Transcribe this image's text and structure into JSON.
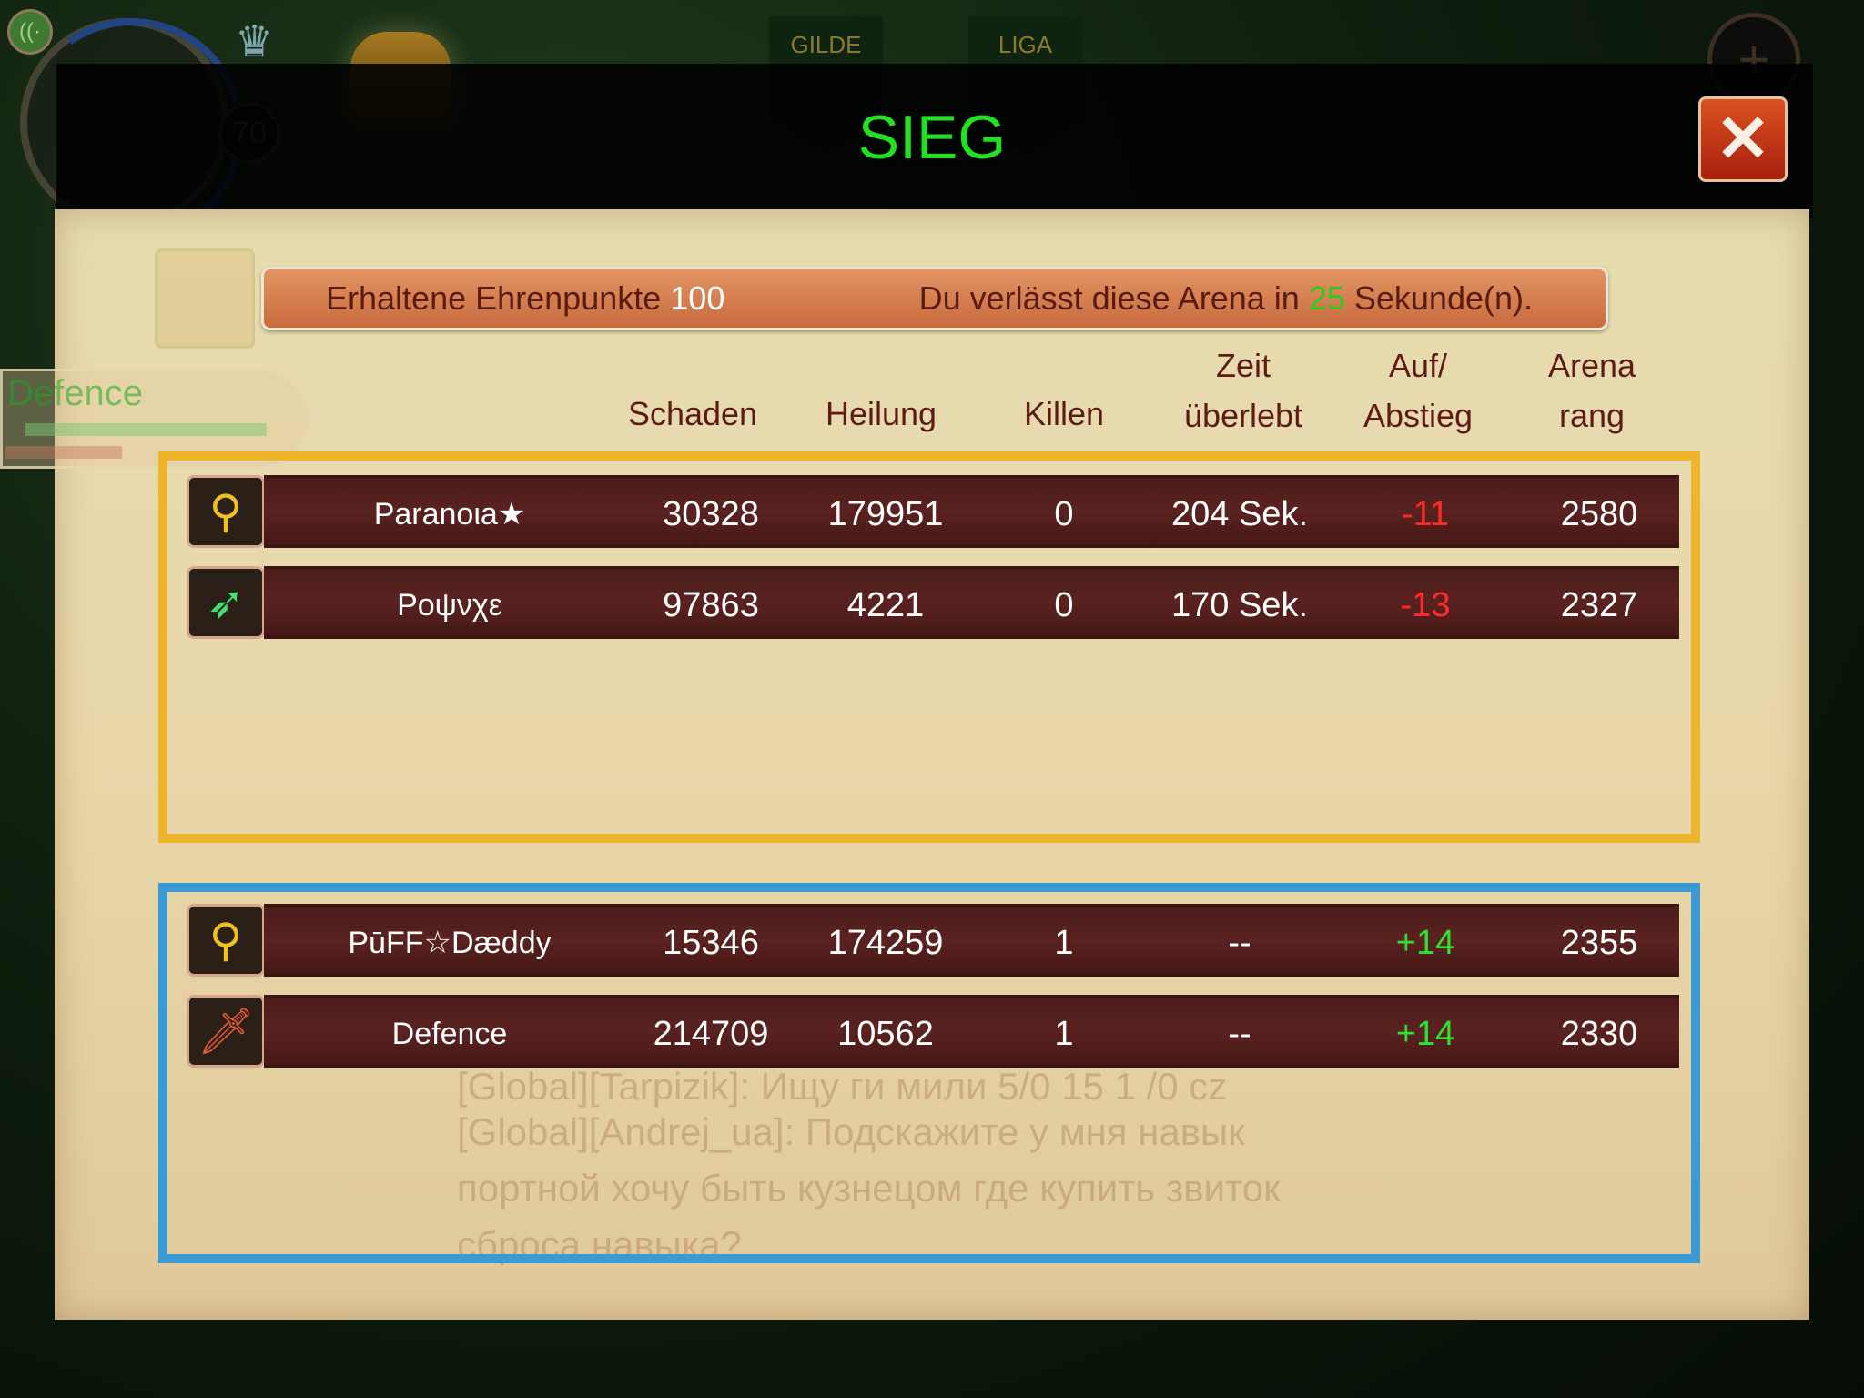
{
  "hud": {
    "level": "70",
    "tabs": [
      "GILDE",
      "LIGA"
    ],
    "player_name": "Defence"
  },
  "title": "SIEG",
  "banner": {
    "honor_label": "Erhaltene Ehrenpunkte",
    "honor_value": "100",
    "leave_prefix": "Du verlässt diese Arena in",
    "leave_seconds": "25",
    "leave_suffix": "Sekunde(n)."
  },
  "columns": [
    {
      "line1": "Schaden",
      "line2": ""
    },
    {
      "line1": "Heilung",
      "line2": ""
    },
    {
      "line1": "Killen",
      "line2": ""
    },
    {
      "line1": "Zeit",
      "line2": "überlebt"
    },
    {
      "line1": "Auf/",
      "line2": "Abstieg"
    },
    {
      "line1": "Arena",
      "line2": "rang"
    }
  ],
  "teams": [
    {
      "color": "#eeb42a",
      "rows": [
        {
          "class_icon": "mace-icon",
          "name": "Paranoιa★",
          "damage": "30328",
          "healing": "179951",
          "kills": "0",
          "time": "204 Sek.",
          "change": "-11",
          "rank": "2580"
        },
        {
          "class_icon": "bow-icon",
          "name": "Ροψνχε",
          "damage": "97863",
          "healing": "4221",
          "kills": "0",
          "time": "170 Sek.",
          "change": "-13",
          "rank": "2327"
        }
      ]
    },
    {
      "color": "#3a9ad4",
      "rows": [
        {
          "class_icon": "mace-icon",
          "name": "PūFF☆Dæddy",
          "damage": "15346",
          "healing": "174259",
          "kills": "1",
          "time": "--",
          "change": "+14",
          "rank": "2355"
        },
        {
          "class_icon": "sword-icon",
          "name": "Defence",
          "damage": "214709",
          "healing": "10562",
          "kills": "1",
          "time": "--",
          "change": "+14",
          "rank": "2330"
        }
      ]
    }
  ],
  "chat": [
    "[Global][Tarpizik]: Ищу ги мили 5/0 15 1 /0 cz",
    "[Global][Andrej_ua]: Подскажите у мня навык",
    "портной хочу быть кузнецом где купить звиток",
    "сброса навыка?"
  ],
  "colors": {
    "victory": "#22e022",
    "negative": "#ff2a2a",
    "positive": "#30e030",
    "row_bg": "#4a1d1a"
  }
}
